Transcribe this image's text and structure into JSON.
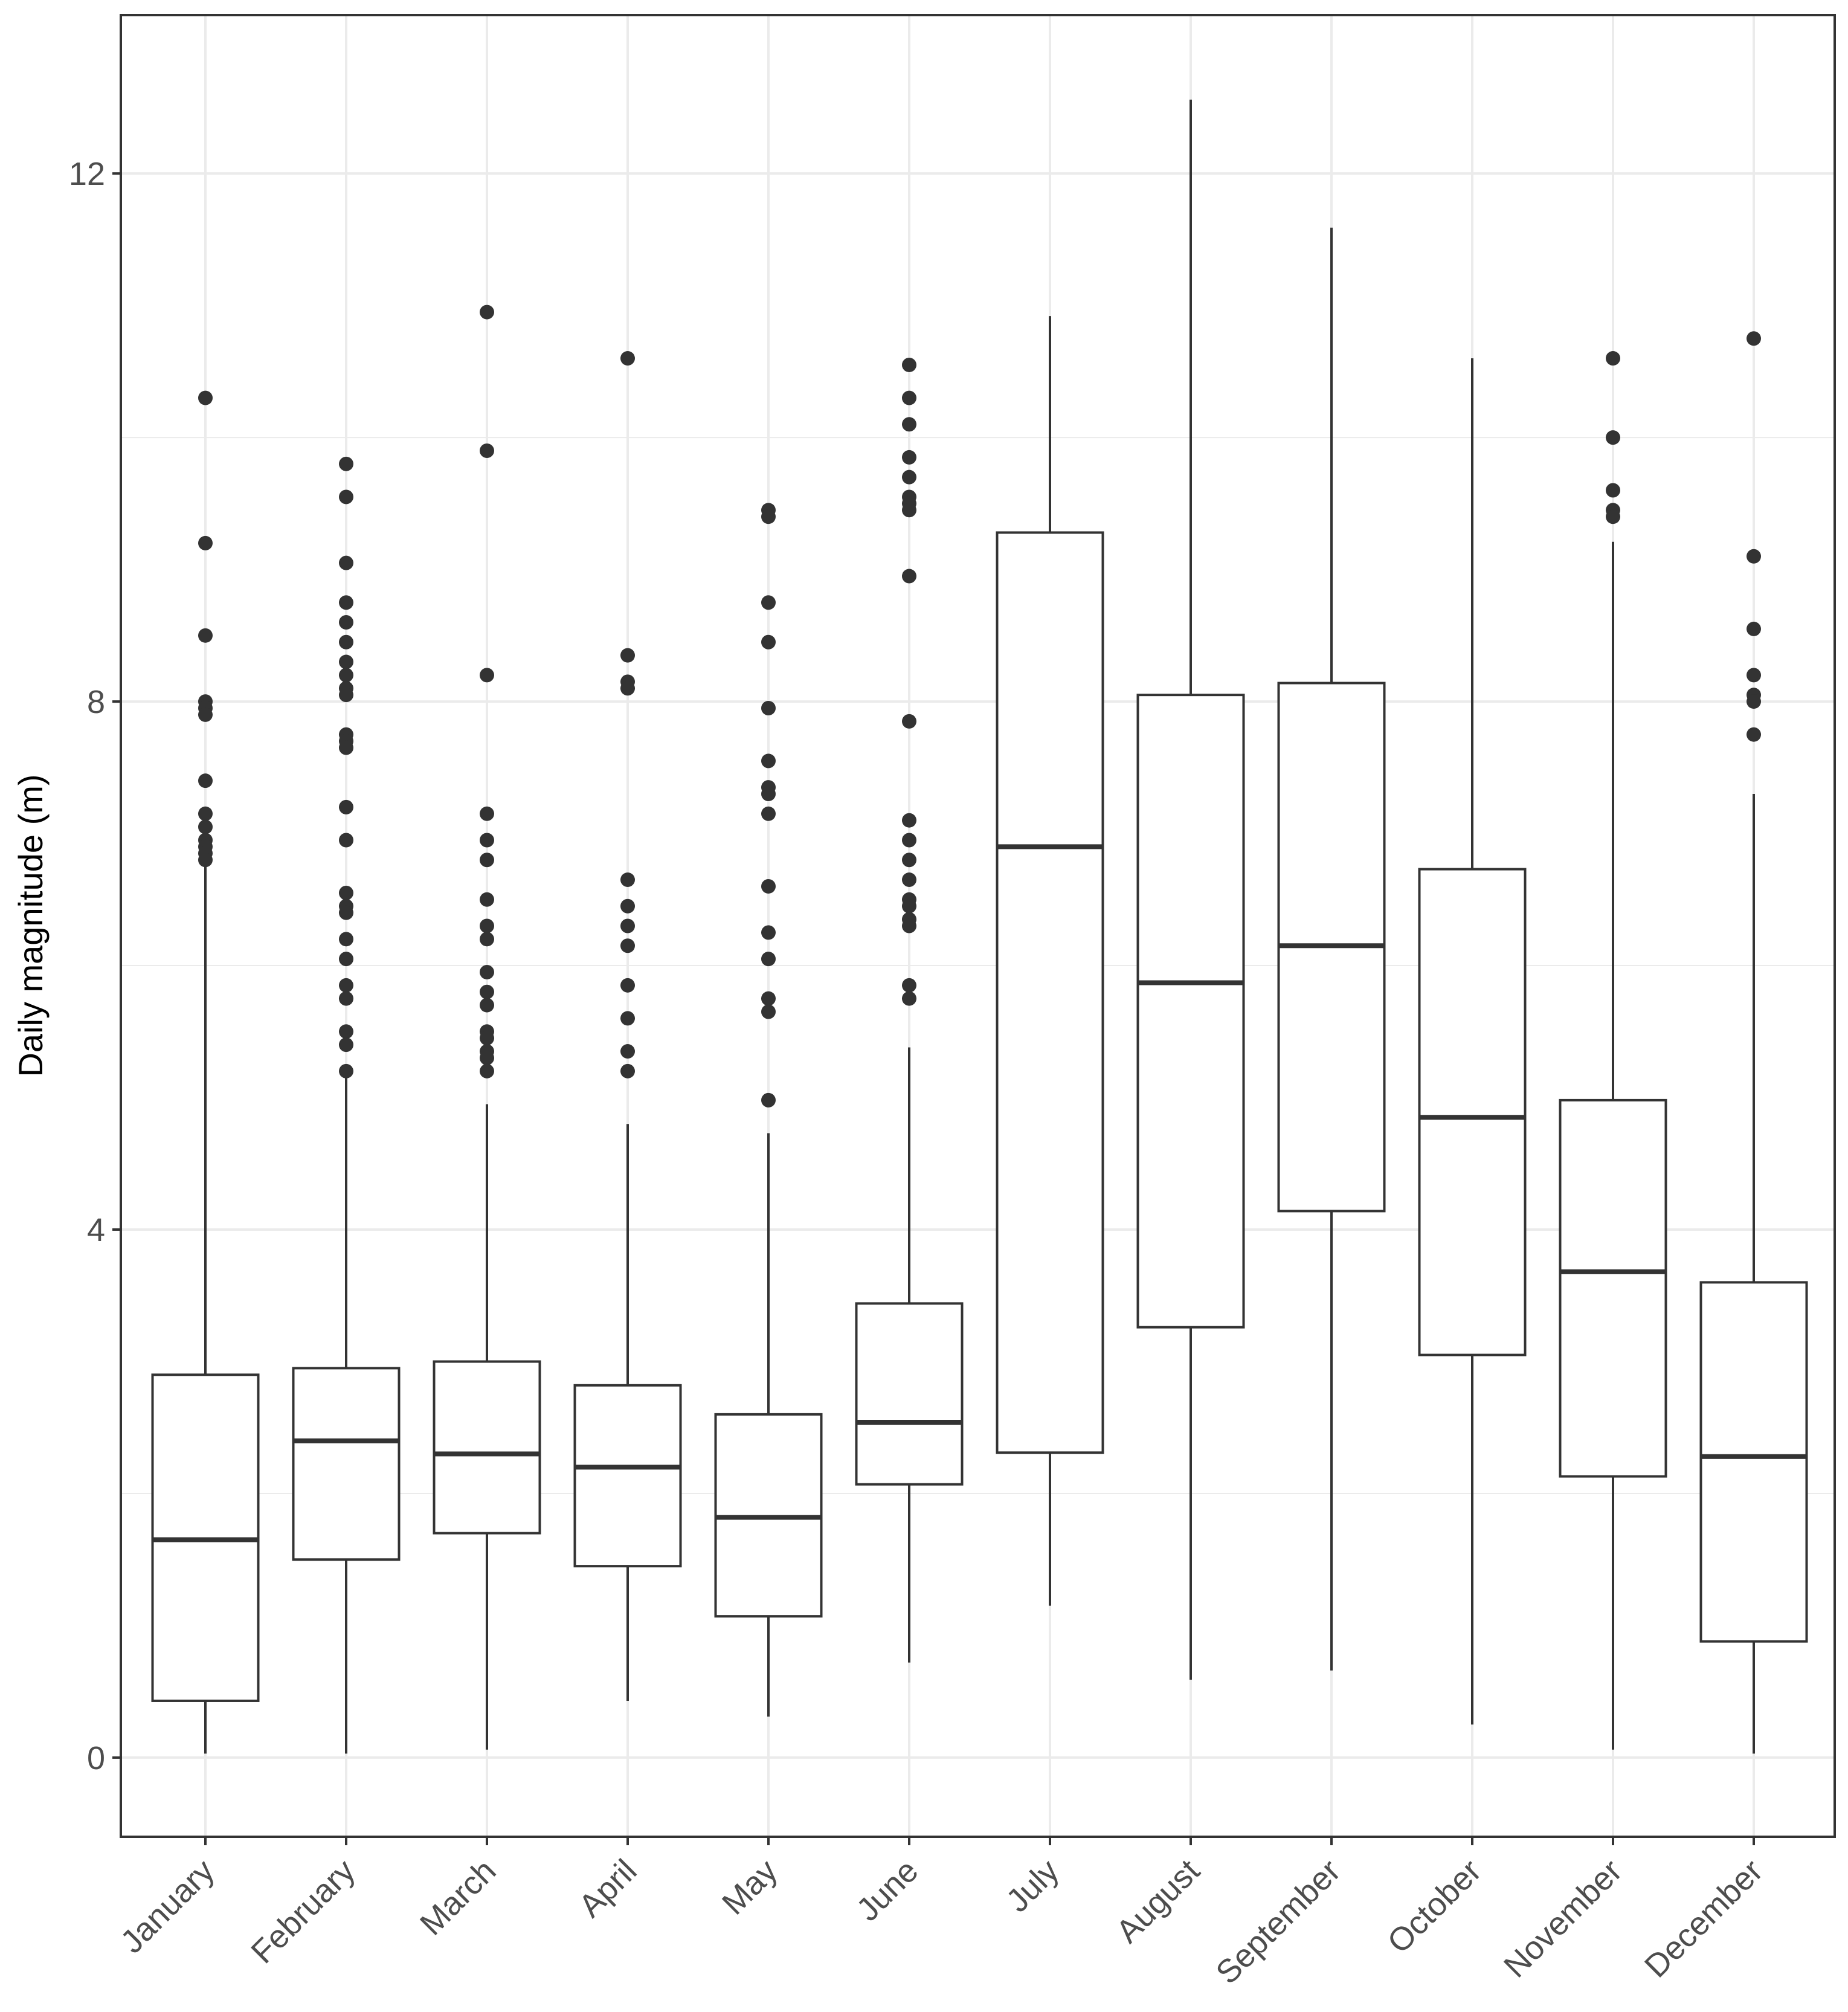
{
  "chart_data": {
    "type": "boxplot",
    "title": "",
    "xlabel": "",
    "ylabel": "Daily magnitude (m)",
    "ylim": [
      -0.6,
      13.2
    ],
    "yticks": [
      0,
      4,
      8,
      12
    ],
    "minor_yticks": [
      2,
      6,
      10
    ],
    "grid": true,
    "categories": [
      "January",
      "February",
      "March",
      "April",
      "May",
      "June",
      "July",
      "August",
      "September",
      "October",
      "November",
      "December"
    ],
    "boxes": [
      {
        "whisker_low": 0.03,
        "q1": 0.43,
        "median": 1.65,
        "q3": 2.9,
        "whisker_high": 6.75,
        "outliers": [
          10.3,
          9.2,
          8.5,
          8.0,
          7.95,
          7.9,
          7.4,
          7.15,
          7.05,
          6.95,
          6.9,
          6.85,
          6.8
        ]
      },
      {
        "whisker_low": 0.03,
        "q1": 1.5,
        "median": 2.4,
        "q3": 2.95,
        "whisker_high": 5.15,
        "outliers": [
          9.8,
          9.55,
          9.05,
          8.75,
          8.6,
          8.45,
          8.3,
          8.2,
          8.1,
          8.05,
          7.75,
          7.7,
          7.65,
          7.2,
          6.95,
          6.55,
          6.45,
          6.4,
          6.2,
          6.05,
          5.85,
          5.75,
          5.5,
          5.4,
          5.2
        ]
      },
      {
        "whisker_low": 0.06,
        "q1": 1.7,
        "median": 2.3,
        "q3": 3.0,
        "whisker_high": 4.95,
        "outliers": [
          10.95,
          9.9,
          8.2,
          7.15,
          6.95,
          6.8,
          6.5,
          6.3,
          6.2,
          5.95,
          5.8,
          5.7,
          5.5,
          5.45,
          5.35,
          5.3,
          5.2
        ]
      },
      {
        "whisker_low": 0.43,
        "q1": 1.45,
        "median": 2.2,
        "q3": 2.82,
        "whisker_high": 4.8,
        "outliers": [
          10.6,
          8.35,
          8.15,
          8.1,
          6.65,
          6.45,
          6.3,
          6.15,
          5.85,
          5.6,
          5.35,
          5.2
        ]
      },
      {
        "whisker_low": 0.31,
        "q1": 1.07,
        "median": 1.82,
        "q3": 2.6,
        "whisker_high": 4.73,
        "outliers": [
          9.45,
          9.4,
          8.75,
          8.45,
          7.95,
          7.55,
          7.35,
          7.3,
          7.15,
          6.6,
          6.25,
          6.05,
          5.75,
          5.65,
          4.98
        ]
      },
      {
        "whisker_low": 0.72,
        "q1": 2.07,
        "median": 2.54,
        "q3": 3.44,
        "whisker_high": 5.38,
        "outliers": [
          10.55,
          10.3,
          10.1,
          9.85,
          9.7,
          9.55,
          9.5,
          9.45,
          8.95,
          7.85,
          7.1,
          6.95,
          6.8,
          6.65,
          6.5,
          6.45,
          6.35,
          6.3,
          5.85,
          5.75
        ]
      },
      {
        "whisker_low": 1.15,
        "q1": 2.31,
        "median": 6.9,
        "q3": 9.28,
        "whisker_high": 10.92,
        "outliers": []
      },
      {
        "whisker_low": 0.59,
        "q1": 3.26,
        "median": 5.87,
        "q3": 8.05,
        "whisker_high": 12.56,
        "outliers": []
      },
      {
        "whisker_low": 0.66,
        "q1": 4.14,
        "median": 6.15,
        "q3": 8.14,
        "whisker_high": 11.59,
        "outliers": []
      },
      {
        "whisker_low": 0.25,
        "q1": 3.05,
        "median": 4.85,
        "q3": 6.73,
        "whisker_high": 10.6,
        "outliers": []
      },
      {
        "whisker_low": 0.06,
        "q1": 2.13,
        "median": 3.68,
        "q3": 4.98,
        "whisker_high": 9.21,
        "outliers": [
          10.6,
          10.0,
          9.6,
          9.45,
          9.4
        ]
      },
      {
        "whisker_low": 0.03,
        "q1": 0.88,
        "median": 2.28,
        "q3": 3.6,
        "whisker_high": 7.3,
        "outliers": [
          10.75,
          9.1,
          8.55,
          8.2,
          8.05,
          8.0,
          7.75
        ]
      }
    ]
  }
}
